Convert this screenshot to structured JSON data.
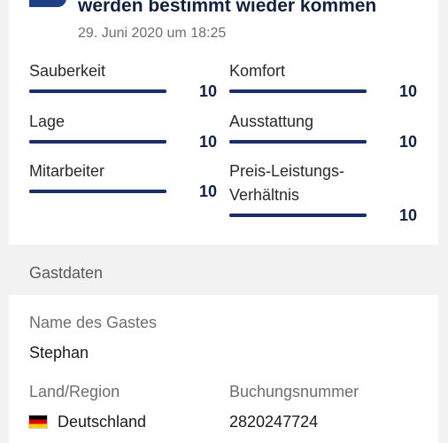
{
  "review": {
    "title": "werden bestimmt wieder kommen",
    "date": "29. Juni 2020 um 18:25",
    "ratings": [
      {
        "label": "Sauberkeit",
        "score": "10",
        "value": 10,
        "max": 10
      },
      {
        "label": "Komfort",
        "score": "10",
        "value": 10,
        "max": 10
      },
      {
        "label": "Lage",
        "score": "10",
        "value": 10,
        "max": 10
      },
      {
        "label": "Ausstattung",
        "score": "10",
        "value": 10,
        "max": 10
      },
      {
        "label": "Mitarbeiter",
        "score": "10",
        "value": 10,
        "max": 10
      },
      {
        "label_line1": "Preis-Leistungs-",
        "label_line2": "Verhältnis",
        "score": "10",
        "value": 10,
        "max": 10
      }
    ]
  },
  "guest": {
    "section_title": "Gastdaten",
    "name_label": "Name des Gastes",
    "name_value": "Stephan",
    "country_label": "Land/Region",
    "country_value": "Deutschland",
    "booking_label": "Buchungsnummer",
    "booking_value": "2820247724",
    "flag_icon": "germany-flag-icon"
  },
  "colors": {
    "accent": "#1b2f66",
    "title": "#14213d",
    "background": "#f2f2f2"
  }
}
